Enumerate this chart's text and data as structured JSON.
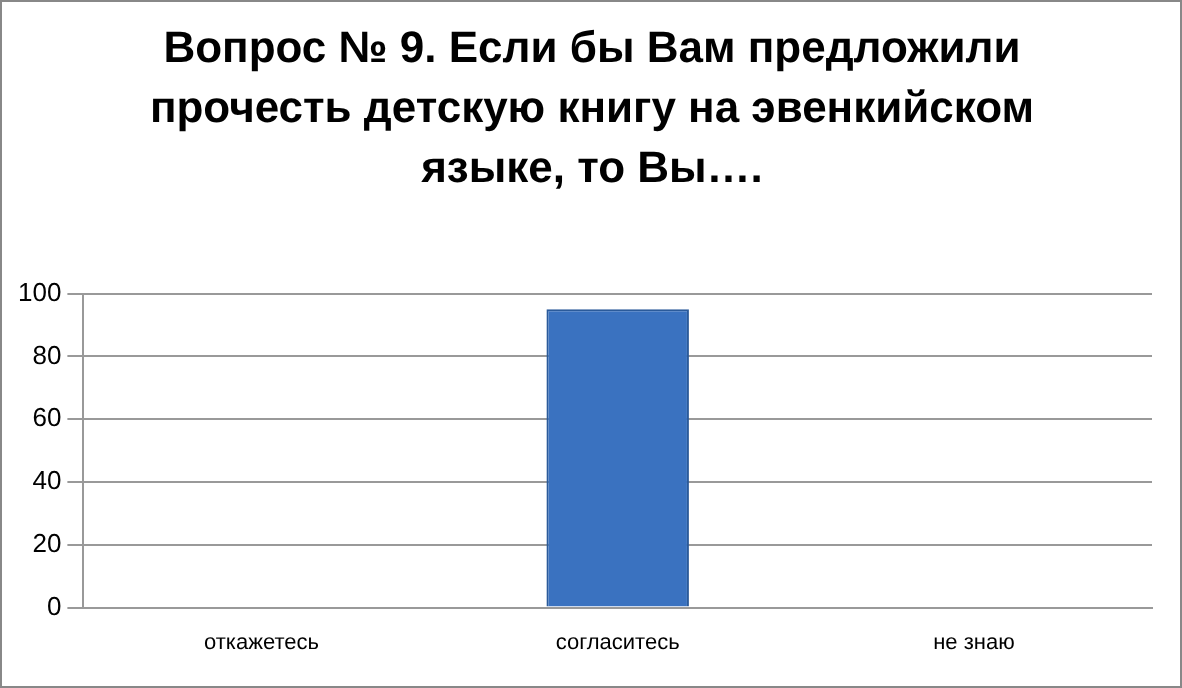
{
  "chart_data": {
    "type": "bar",
    "title": "Вопрос №  9.  Если бы Вам предложили прочесть детскую книгу на эвенкийском языке, то Вы….",
    "categories": [
      "откажетесь",
      "согласитесь",
      "не знаю"
    ],
    "values": [
      0,
      95,
      0
    ],
    "color": "#3a72c0",
    "ylim": [
      0,
      100
    ],
    "yticks": [
      0,
      20,
      40,
      60,
      80,
      100
    ],
    "grid": "y",
    "legend": false
  }
}
